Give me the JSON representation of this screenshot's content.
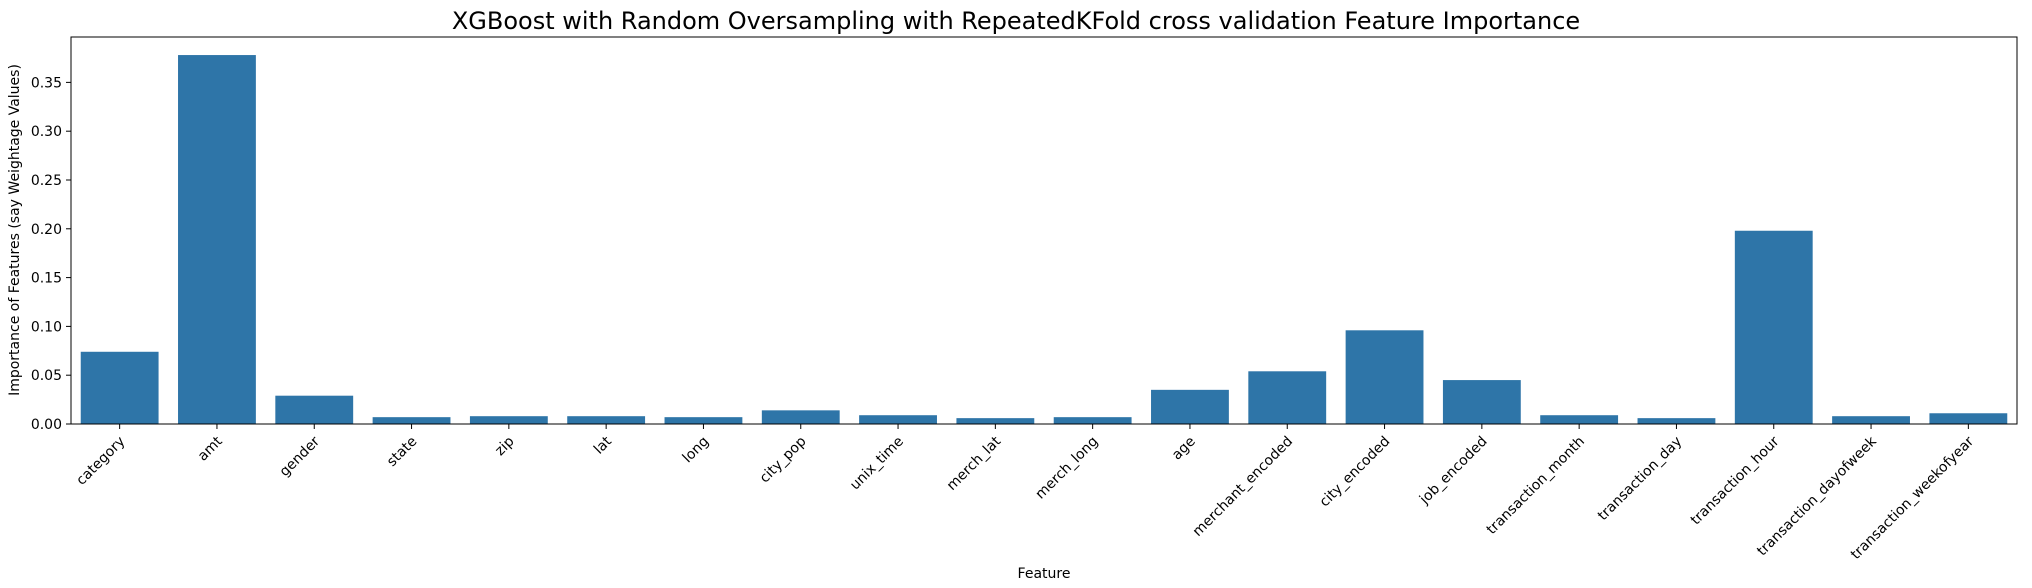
{
  "chart_data": {
    "type": "bar",
    "title": "XGBoost with Random Oversampling with RepeatedKFold cross validation Feature Importance",
    "xlabel": "Feature",
    "ylabel": "Importance of Features (say Weightage Values)",
    "categories": [
      "category",
      "amt",
      "gender",
      "state",
      "zip",
      "lat",
      "long",
      "city_pop",
      "unix_time",
      "merch_lat",
      "merch_long",
      "age",
      "merchant_encoded",
      "city_encoded",
      "job_encoded",
      "transaction_month",
      "transaction_day",
      "transaction_hour",
      "transaction_dayofweek",
      "transaction_weekofyear"
    ],
    "values": [
      0.074,
      0.378,
      0.029,
      0.007,
      0.008,
      0.008,
      0.007,
      0.014,
      0.009,
      0.006,
      0.007,
      0.035,
      0.054,
      0.096,
      0.045,
      0.009,
      0.006,
      0.198,
      0.008,
      0.011
    ],
    "ylim": [
      0,
      0.3965
    ],
    "yticks": [
      "0.00",
      "0.05",
      "0.10",
      "0.15",
      "0.20",
      "0.25",
      "0.30",
      "0.35"
    ],
    "bar_color": "#2e75a8",
    "grid": false
  }
}
